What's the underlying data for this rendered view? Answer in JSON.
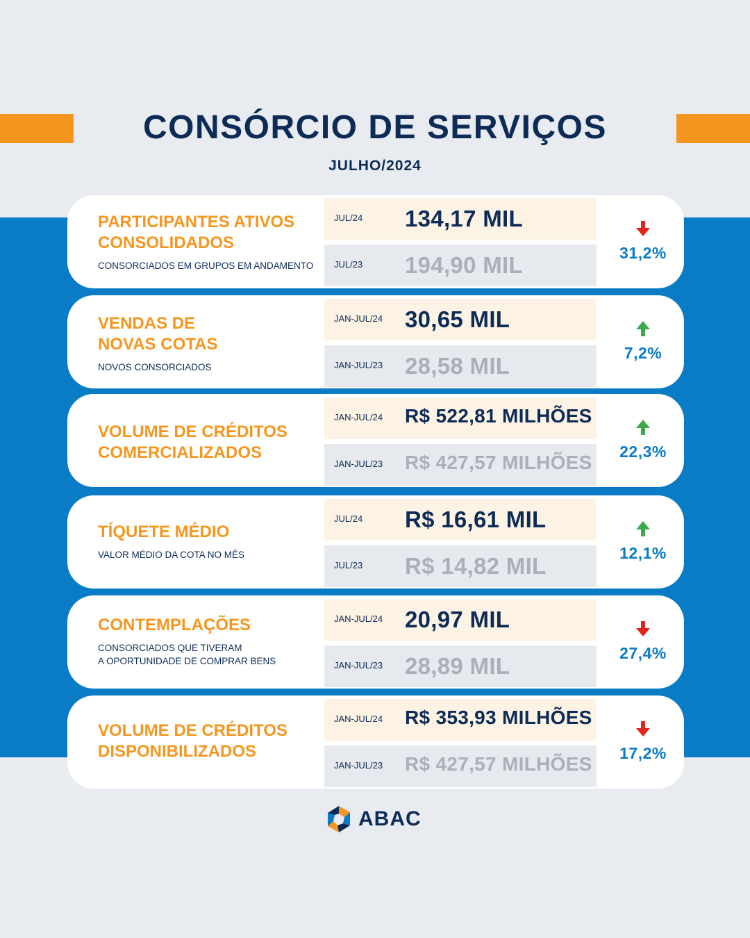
{
  "header": {
    "title": "CONSÓRCIO DE SERVIÇOS",
    "subtitle": "JULHO/2024"
  },
  "colors": {
    "accent": "#f5961e",
    "brand_blue": "#0a7cc6",
    "navy": "#0d2b57",
    "up": "#3daa4a",
    "down": "#e0261c"
  },
  "cards": [
    {
      "title": "PARTICIPANTES ATIVOS\nCONSOLIDADOS",
      "subtitle": "CONSORCIADOS EM GRUPOS EM ANDAMENTO",
      "current": {
        "period": "JUL/24",
        "value": "134,17 MIL"
      },
      "previous": {
        "period": "JUL/23",
        "value": "194,90 MIL"
      },
      "direction": "down",
      "arrow_icon": "arrow-down-icon",
      "change": "31,2%"
    },
    {
      "title": "VENDAS DE\nNOVAS COTAS",
      "subtitle": "NOVOS CONSORCIADOS",
      "current": {
        "period": "JAN-JUL/24",
        "value": "30,65 MIL"
      },
      "previous": {
        "period": "JAN-JUL/23",
        "value": "28,58 MIL"
      },
      "direction": "up",
      "arrow_icon": "arrow-up-icon",
      "change": "7,2%"
    },
    {
      "title": "VOLUME DE CRÉDITOS\nCOMERCIALIZADOS",
      "subtitle": "",
      "current": {
        "period": "JAN-JUL/24",
        "value": "R$ 522,81 MILHÕES"
      },
      "previous": {
        "period": "JAN-JUL/23",
        "value": "R$ 427,57 MILHÕES"
      },
      "direction": "up",
      "arrow_icon": "arrow-up-icon",
      "change": "22,3%"
    },
    {
      "title": "TÍQUETE MÉDIO",
      "subtitle": "VALOR MÉDIO DA COTA NO MÊS",
      "current": {
        "period": "JUL/24",
        "value": "R$ 16,61 MIL"
      },
      "previous": {
        "period": "JUL/23",
        "value": "R$ 14,82 MIL"
      },
      "direction": "up",
      "arrow_icon": "arrow-up-icon",
      "change": "12,1%"
    },
    {
      "title": "CONTEMPLAÇÕES",
      "subtitle": "CONSORCIADOS QUE TIVERAM\nA OPORTUNIDADE DE COMPRAR BENS",
      "current": {
        "period": "JAN-JUL/24",
        "value": "20,97 MIL"
      },
      "previous": {
        "period": "JAN-JUL/23",
        "value": "28,89 MIL"
      },
      "direction": "down",
      "arrow_icon": "arrow-down-icon",
      "change": "27,4%"
    },
    {
      "title": "VOLUME DE CRÉDITOS\nDISPONIBILIZADOS",
      "subtitle": "",
      "current": {
        "period": "JAN-JUL/24",
        "value": "R$ 353,93 MILHÕES"
      },
      "previous": {
        "period": "JAN-JUL/23",
        "value": "R$ 427,57 MILHÕES"
      },
      "direction": "down",
      "arrow_icon": "arrow-down-icon",
      "change": "17,2%"
    }
  ],
  "footer": {
    "logo_text": "ABAC",
    "logo_icon": "abac-logo-icon"
  }
}
